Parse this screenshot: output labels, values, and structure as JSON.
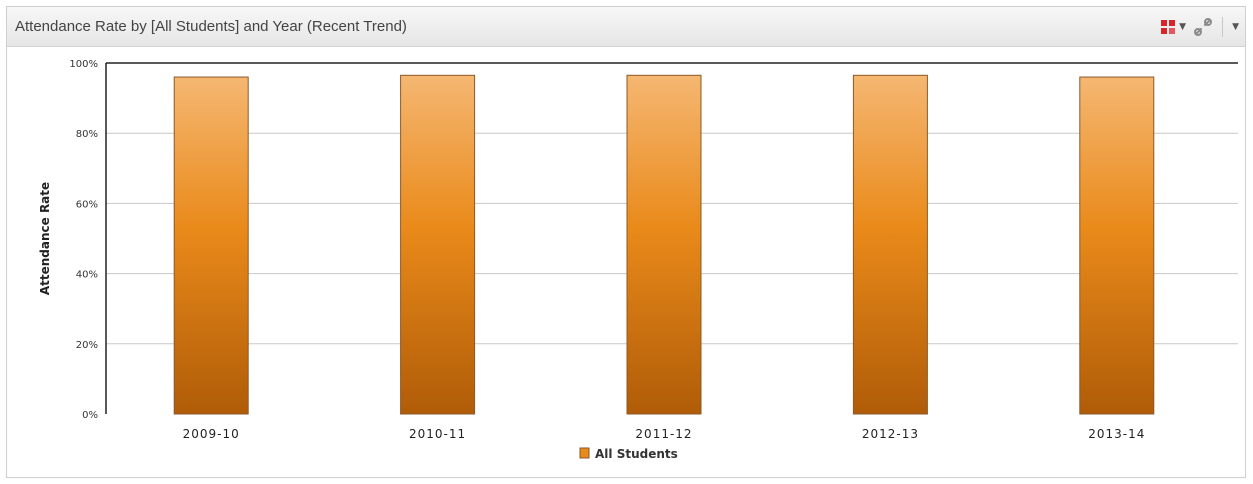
{
  "panel": {
    "title": "Attendance Rate by [All Students] and Year (Recent Trend)"
  },
  "toolbar": {
    "chart_type_icon": "bar-chart-icon",
    "link_icon": "link-icon",
    "menu_icon": "chevron-down-icon"
  },
  "colors": {
    "bar_light": "#f5b772",
    "bar_mid": "#e98a1a",
    "bar_dark": "#b05c08",
    "bar_stroke": "#8a5a2a",
    "grid": "#c8c8c8"
  },
  "chart_data": {
    "type": "bar",
    "categories": [
      "2009-10",
      "2010-11",
      "2011-12",
      "2012-13",
      "2013-14"
    ],
    "series": [
      {
        "name": "All Students",
        "values": [
          96,
          96.5,
          96.5,
          96.5,
          96
        ]
      }
    ],
    "ylabel": "Attendance Rate",
    "xlabel": "",
    "ylim": [
      0,
      100
    ],
    "yticks": [
      0,
      20,
      40,
      60,
      80,
      100
    ],
    "ytick_labels": [
      "0%",
      "20%",
      "40%",
      "60%",
      "80%",
      "100%"
    ],
    "grid": true,
    "legend_position": "bottom"
  }
}
